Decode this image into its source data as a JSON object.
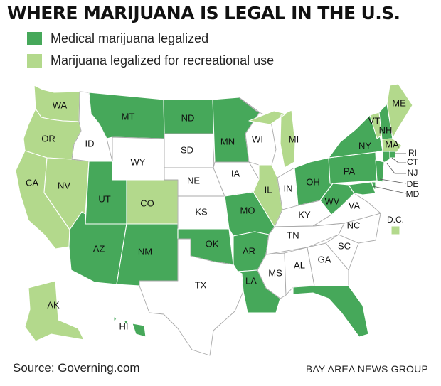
{
  "title": "WHERE MARIJUANA IS LEGAL IN THE U.S.",
  "legend": [
    {
      "label": "Medical marijuana legalized",
      "color": "#46a85a"
    },
    {
      "label": "Marijuana legalized for recreational use",
      "color": "#b3d98c"
    }
  ],
  "colors": {
    "medical": "#46a85a",
    "recreational": "#b3d98c",
    "none": "#ffffff"
  },
  "states": [
    {
      "code": "WA",
      "status": "recreational"
    },
    {
      "code": "OR",
      "status": "recreational"
    },
    {
      "code": "CA",
      "status": "recreational"
    },
    {
      "code": "NV",
      "status": "recreational"
    },
    {
      "code": "ID",
      "status": "none"
    },
    {
      "code": "MT",
      "status": "medical"
    },
    {
      "code": "WY",
      "status": "none"
    },
    {
      "code": "UT",
      "status": "medical"
    },
    {
      "code": "AZ",
      "status": "medical"
    },
    {
      "code": "CO",
      "status": "recreational"
    },
    {
      "code": "NM",
      "status": "medical"
    },
    {
      "code": "ND",
      "status": "medical"
    },
    {
      "code": "SD",
      "status": "none"
    },
    {
      "code": "NE",
      "status": "none"
    },
    {
      "code": "KS",
      "status": "none"
    },
    {
      "code": "OK",
      "status": "medical"
    },
    {
      "code": "TX",
      "status": "none"
    },
    {
      "code": "MN",
      "status": "medical"
    },
    {
      "code": "IA",
      "status": "none"
    },
    {
      "code": "MO",
      "status": "medical"
    },
    {
      "code": "AR",
      "status": "medical"
    },
    {
      "code": "LA",
      "status": "medical"
    },
    {
      "code": "WI",
      "status": "none"
    },
    {
      "code": "IL",
      "status": "recreational"
    },
    {
      "code": "MI",
      "status": "recreational"
    },
    {
      "code": "IN",
      "status": "none"
    },
    {
      "code": "OH",
      "status": "medical"
    },
    {
      "code": "KY",
      "status": "none"
    },
    {
      "code": "TN",
      "status": "none"
    },
    {
      "code": "MS",
      "status": "none"
    },
    {
      "code": "AL",
      "status": "none"
    },
    {
      "code": "GA",
      "status": "none"
    },
    {
      "code": "FL",
      "status": "medical"
    },
    {
      "code": "SC",
      "status": "none"
    },
    {
      "code": "NC",
      "status": "none"
    },
    {
      "code": "VA",
      "status": "none"
    },
    {
      "code": "WV",
      "status": "medical"
    },
    {
      "code": "PA",
      "status": "medical"
    },
    {
      "code": "NY",
      "status": "medical"
    },
    {
      "code": "VT",
      "status": "recreational"
    },
    {
      "code": "NH",
      "status": "medical"
    },
    {
      "code": "ME",
      "status": "recreational"
    },
    {
      "code": "MA",
      "status": "recreational"
    },
    {
      "code": "RI",
      "status": "medical"
    },
    {
      "code": "CT",
      "status": "medical"
    },
    {
      "code": "NJ",
      "status": "medical"
    },
    {
      "code": "DE",
      "status": "medical"
    },
    {
      "code": "MD",
      "status": "medical"
    },
    {
      "code": "AK",
      "status": "recreational"
    },
    {
      "code": "HI",
      "status": "medical"
    },
    {
      "code": "D.C.",
      "status": "recreational"
    }
  ],
  "source": "Source: Governing.com",
  "credit": "BAY AREA NEWS GROUP"
}
